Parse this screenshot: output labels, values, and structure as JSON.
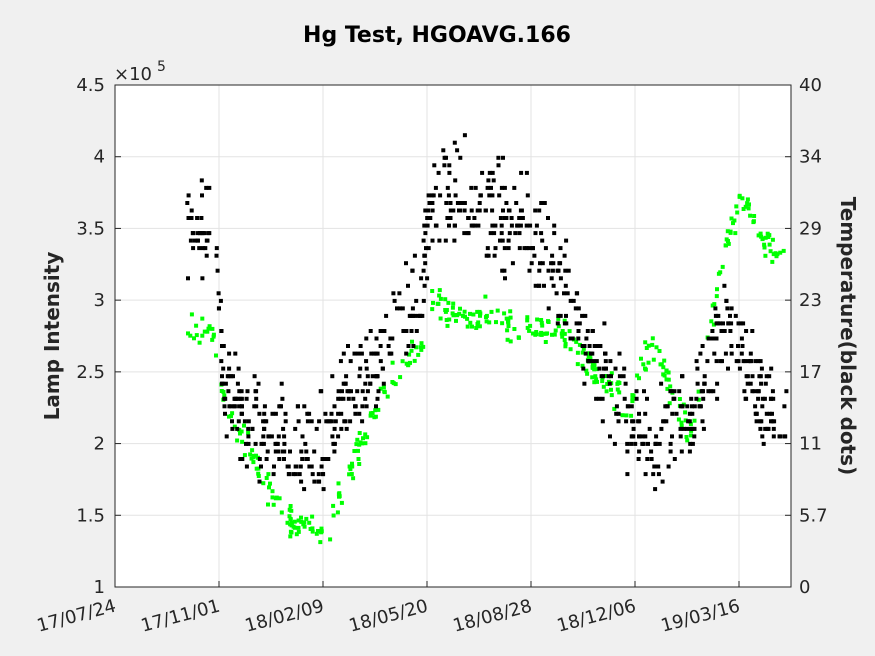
{
  "chart_data": {
    "type": "scatter",
    "title": "Hg Test, HGOAVG.166",
    "ylabel_left": "Lamp Intensity",
    "ylabel_right": "Temperature(black dots)",
    "y_left_exponent_label": "×10",
    "y_left_exponent": "5",
    "x_tick_labels": [
      "17/07/24",
      "17/11/01",
      "18/02/09",
      "18/05/20",
      "18/08/28",
      "18/12/06",
      "19/03/16"
    ],
    "y_left_tick_labels": [
      "1",
      "1.5",
      "2",
      "2.5",
      "3",
      "3.5",
      "4",
      "4.5"
    ],
    "y_left_ticks": [
      1.0,
      1.5,
      2.0,
      2.5,
      3.0,
      3.5,
      4.0,
      4.5
    ],
    "y_left_lim": [
      1.0,
      4.5
    ],
    "y_right_tick_labels": [
      "0",
      "5.7",
      "11",
      "17",
      "23",
      "29",
      "34",
      "40"
    ],
    "y_right_lim": [
      0,
      40
    ],
    "x_lim": [
      "2017-07-24",
      "2019-05-05"
    ],
    "grid": true,
    "series": [
      {
        "color": "#00ff00",
        "axis": "left",
        "keypoints_x": [
          "2017-10-01",
          "2017-10-25",
          "2017-11-08",
          "2017-11-25",
          "2017-12-15",
          "2018-01-10",
          "2018-02-10",
          "2018-03-15",
          "2018-04-15",
          "2018-05-15",
          "2018-05-22",
          "2018-06-15",
          "2018-07-20",
          "2018-08-25",
          "2018-09-25",
          "2018-10-20",
          "2018-11-10",
          "2018-11-25",
          "2018-12-01",
          "2018-12-10",
          "2018-12-25",
          "2019-01-10",
          "2019-01-28",
          "2019-02-15",
          "2019-03-05",
          "2019-03-20",
          "2019-04-10",
          "2019-05-01"
        ],
        "keypoints_y": [
          2.82,
          2.8,
          2.22,
          2.05,
          1.72,
          1.45,
          1.35,
          1.95,
          2.45,
          2.68,
          3.03,
          2.9,
          2.9,
          2.8,
          2.78,
          2.6,
          2.4,
          2.3,
          2.2,
          2.55,
          2.72,
          2.35,
          2.05,
          2.75,
          3.45,
          3.72,
          3.38,
          3.25
        ],
        "spread": 0.09,
        "count": 420
      },
      {
        "color": "#000000",
        "axis": "right",
        "keypoints_x": [
          "2017-10-01",
          "2017-10-25",
          "2017-11-08",
          "2017-11-25",
          "2017-12-15",
          "2018-01-10",
          "2018-02-10",
          "2018-03-15",
          "2018-04-15",
          "2018-05-15",
          "2018-05-22",
          "2018-06-15",
          "2018-07-20",
          "2018-08-25",
          "2018-09-25",
          "2018-10-20",
          "2018-11-10",
          "2018-11-25",
          "2018-12-01",
          "2018-12-10",
          "2018-12-25",
          "2019-01-10",
          "2019-01-28",
          "2019-02-15",
          "2019-03-05",
          "2019-03-20",
          "2019-04-10",
          "2019-05-01"
        ],
        "keypoints_y": [
          28,
          29,
          15,
          13.5,
          12.5,
          11.5,
          11,
          16.5,
          19.5,
          23,
          30,
          31,
          29.5,
          28.5,
          24,
          19.5,
          16,
          15.5,
          12,
          12,
          10.5,
          13,
          14.5,
          17,
          22,
          18.5,
          14,
          14
        ],
        "spread": 3.5,
        "count": 820
      }
    ]
  }
}
